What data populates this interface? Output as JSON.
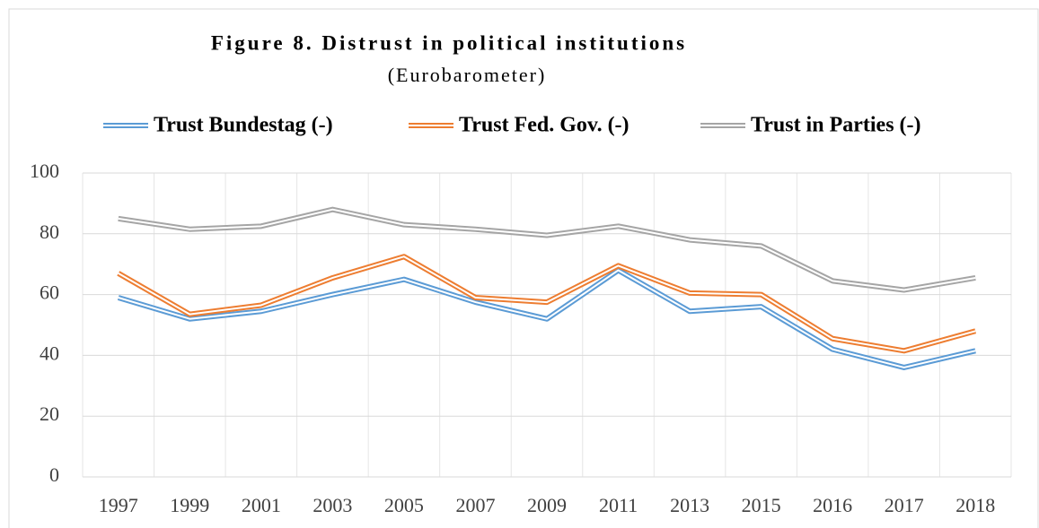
{
  "chart_data": {
    "type": "line",
    "title": "Figure 8. Distrust in political institutions",
    "subtitle": "(Eurobarometer)",
    "categories": [
      "1997",
      "1999",
      "2001",
      "2003",
      "2005",
      "2007",
      "2009",
      "2011",
      "2013",
      "2015",
      "2016",
      "2017",
      "2018"
    ],
    "series": [
      {
        "name": "Trust Bundestag (-)",
        "color": "#5b9bd5",
        "values": [
          59,
          52,
          54.5,
          60,
          65,
          57.5,
          52,
          68,
          54.5,
          56,
          42,
          36,
          41.5
        ]
      },
      {
        "name": "Trust Fed. Gov. (-)",
        "color": "#ed7d31",
        "values": [
          67,
          53.5,
          56.5,
          65.5,
          72.5,
          59,
          57.5,
          69.5,
          60.5,
          60,
          45.5,
          41.5,
          48
        ]
      },
      {
        "name": "Trust in Parties (-)",
        "color": "#a5a5a5",
        "values": [
          85,
          81.5,
          82.5,
          88,
          83,
          81.5,
          79.5,
          82.5,
          78,
          76,
          64.5,
          61.5,
          65.5
        ]
      }
    ],
    "ylim": [
      0,
      100
    ],
    "yticks": [
      0,
      20,
      40,
      60,
      80,
      100
    ],
    "grid": true,
    "legend": "top"
  }
}
